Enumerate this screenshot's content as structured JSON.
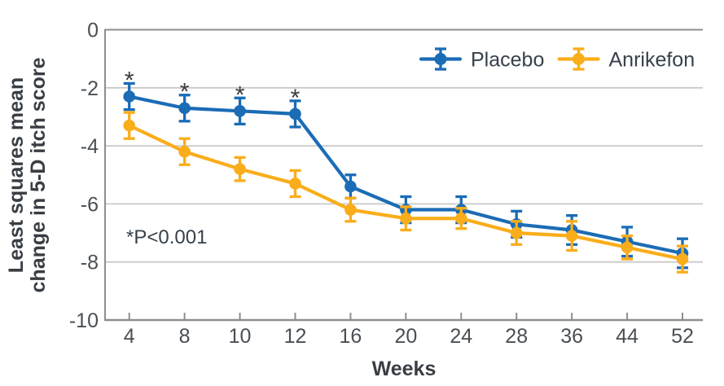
{
  "chart_data": {
    "type": "line",
    "title": "",
    "xlabel": "Weeks",
    "ylabel": "Least squares mean change in 5-D itch score",
    "ylabel_lines": [
      "Least squares mean",
      "change in 5-D itch score"
    ],
    "categories": [
      4,
      8,
      10,
      12,
      16,
      20,
      24,
      28,
      36,
      44,
      52
    ],
    "y_ticks": [
      0,
      -2,
      -4,
      -6,
      -8,
      -10
    ],
    "ylim": [
      -10,
      0
    ],
    "grid": "horizontal",
    "legend_position": "top-right-inside",
    "annotation": "*P<0.001",
    "significance_marker": "*",
    "significant_categories": [
      4,
      8,
      10,
      12
    ],
    "series": [
      {
        "name": "Placebo",
        "color": "#1B6CB5",
        "values": [
          -2.3,
          -2.7,
          -2.8,
          -2.9,
          -5.4,
          -6.2,
          -6.2,
          -6.7,
          -6.9,
          -7.3,
          -7.7
        ],
        "errors": [
          0.45,
          0.45,
          0.45,
          0.45,
          0.4,
          0.45,
          0.45,
          0.45,
          0.5,
          0.5,
          0.5
        ]
      },
      {
        "name": "Anrikefon",
        "color": "#FAAD1A",
        "values": [
          -3.3,
          -4.2,
          -4.8,
          -5.3,
          -6.2,
          -6.5,
          -6.5,
          -7.0,
          -7.1,
          -7.5,
          -7.9
        ],
        "errors": [
          0.45,
          0.45,
          0.4,
          0.45,
          0.4,
          0.4,
          0.35,
          0.4,
          0.5,
          0.4,
          0.45
        ]
      }
    ]
  },
  "colors": {
    "axis": "#8E8E8E",
    "grid": "#C9C9C9",
    "tick_text": "#4A4F54",
    "title_text": "#383E44",
    "legend_text": "#37414B",
    "annotation_text": "#37414B",
    "asterisk": "#3B3B3B",
    "background": "#FFFFFF"
  }
}
